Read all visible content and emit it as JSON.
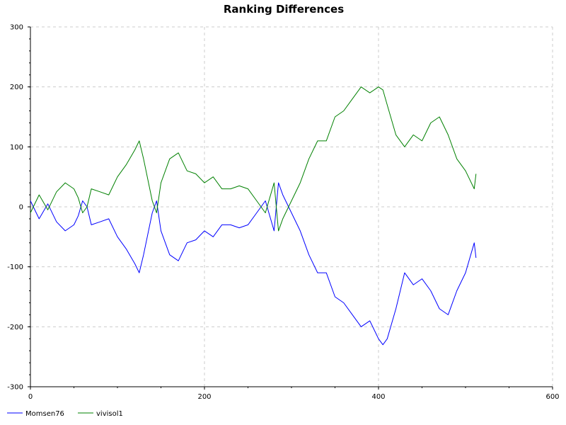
{
  "chart_data": {
    "type": "line",
    "title": "Ranking Differences",
    "xlabel": "",
    "ylabel": "",
    "xlim": [
      0,
      600
    ],
    "ylim": [
      -300,
      300
    ],
    "x_ticks": [
      0,
      200,
      400,
      600
    ],
    "y_ticks": [
      -300,
      -200,
      -100,
      0,
      100,
      200,
      300
    ],
    "x_tick_labels": [
      "0",
      "200",
      "400",
      "600"
    ],
    "y_tick_labels": [
      "-300",
      "-200",
      "-100",
      "0",
      "100",
      "200",
      "300"
    ],
    "grid": true,
    "legend_position": "bottom-left",
    "series": [
      {
        "name": "Momsen76",
        "color": "#0000ff",
        "x": [
          0,
          10,
          20,
          30,
          40,
          50,
          55,
          60,
          65,
          70,
          80,
          90,
          100,
          110,
          120,
          125,
          130,
          140,
          145,
          150,
          160,
          170,
          180,
          190,
          200,
          210,
          220,
          230,
          240,
          250,
          260,
          270,
          280,
          285,
          290,
          300,
          310,
          320,
          330,
          340,
          350,
          360,
          370,
          380,
          390,
          400,
          405,
          410,
          420,
          430,
          440,
          450,
          460,
          470,
          480,
          490,
          500,
          510,
          512
        ],
        "y": [
          10,
          -20,
          5,
          -25,
          -40,
          -30,
          -15,
          10,
          0,
          -30,
          -25,
          -20,
          -50,
          -70,
          -95,
          -110,
          -80,
          -10,
          10,
          -40,
          -80,
          -90,
          -60,
          -55,
          -40,
          -50,
          -30,
          -30,
          -35,
          -30,
          -10,
          10,
          -40,
          40,
          20,
          -10,
          -40,
          -80,
          -110,
          -110,
          -150,
          -160,
          -180,
          -200,
          -190,
          -220,
          -230,
          -220,
          -170,
          -110,
          -130,
          -120,
          -140,
          -170,
          -180,
          -140,
          -110,
          -60,
          -85
        ]
      },
      {
        "name": "vivisol1",
        "color": "#008000",
        "x": [
          0,
          10,
          20,
          30,
          40,
          50,
          55,
          60,
          65,
          70,
          80,
          90,
          100,
          110,
          120,
          125,
          130,
          140,
          145,
          150,
          160,
          170,
          180,
          190,
          200,
          210,
          220,
          230,
          240,
          250,
          260,
          270,
          280,
          285,
          290,
          300,
          310,
          320,
          330,
          340,
          350,
          360,
          370,
          380,
          390,
          400,
          405,
          410,
          420,
          430,
          440,
          450,
          460,
          470,
          480,
          490,
          500,
          510,
          512
        ],
        "y": [
          -10,
          20,
          -5,
          25,
          40,
          30,
          15,
          -10,
          0,
          30,
          25,
          20,
          50,
          70,
          95,
          110,
          80,
          10,
          -10,
          40,
          80,
          90,
          60,
          55,
          40,
          50,
          30,
          30,
          35,
          30,
          10,
          -10,
          40,
          -40,
          -20,
          10,
          40,
          80,
          110,
          110,
          150,
          160,
          180,
          200,
          190,
          200,
          195,
          170,
          120,
          100,
          120,
          110,
          140,
          150,
          120,
          80,
          60,
          30,
          55
        ]
      }
    ]
  }
}
